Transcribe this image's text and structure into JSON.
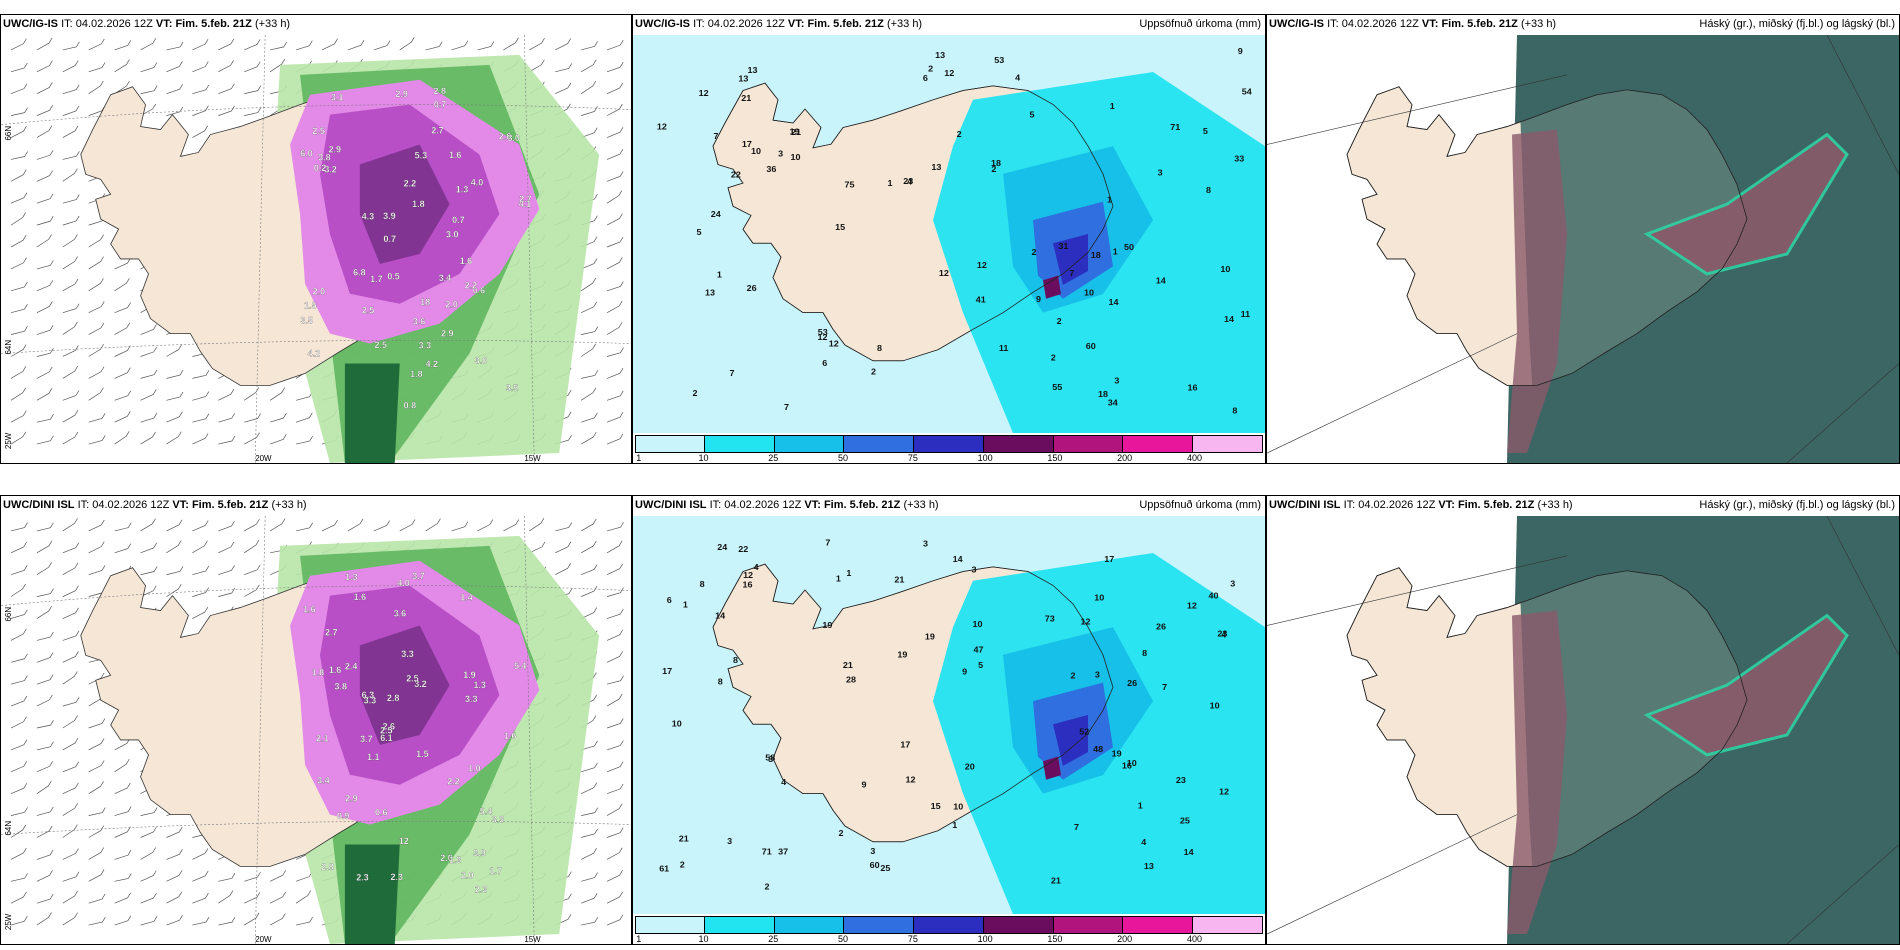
{
  "rows": [
    {
      "panels": [
        {
          "kind": "wind",
          "model": "UWC/IG-IS",
          "it_label": "IT:",
          "it": "04.02.2026 12Z",
          "vt_label": "VT:",
          "vt": "Fim. 5.feb. 21Z",
          "lead": "(+33 h)",
          "right": "",
          "lat_labels": [
            "66N",
            "64N",
            "25W"
          ],
          "lon_labels": [
            "20W",
            "15W"
          ],
          "values": [
            "0.7",
            "1.8",
            "2.5",
            "3.0",
            "2.7",
            "4.2",
            "3.9",
            "2.7",
            "3.5",
            "3.8",
            "3.4",
            "3.6",
            "3.2",
            "2.9",
            "2.6",
            "3.0",
            "2.5",
            "1.8",
            "2.2",
            "1.6",
            "2.0",
            "0.8",
            "0.6",
            "0.7",
            "2.9",
            "4.1",
            "3.5",
            "4.0",
            "2.9",
            "1.6",
            "2.2",
            "2.5",
            "0.5",
            "0.7",
            "4.2",
            "4.3",
            "6.0",
            "5.3",
            "1.3",
            "3.0",
            "6.8",
            "1.5",
            "18",
            "0.2",
            "3.3",
            "3.1",
            "1.7",
            "2.8",
            "2.0"
          ]
        },
        {
          "kind": "precip",
          "model": "UWC/IG-IS",
          "it_label": "IT:",
          "it": "04.02.2026 12Z",
          "vt_label": "VT:",
          "vt": "Fim. 5.feb. 21Z",
          "lead": "(+33 h)",
          "right": "Uppsöfnuð úrkoma (mm)",
          "values": [
            "1",
            "2",
            "2",
            "3",
            "3",
            "2",
            "2",
            "1",
            "1",
            "1",
            "2",
            "4",
            "4",
            "5",
            "7",
            "10",
            "19",
            "5",
            "7",
            "8",
            "12",
            "11",
            "14",
            "9",
            "10",
            "8",
            "12",
            "12",
            "7",
            "6",
            "13",
            "41",
            "55",
            "6",
            "9",
            "54",
            "15",
            "18",
            "18",
            "71",
            "26",
            "53",
            "75",
            "10",
            "16",
            "33",
            "12",
            "14",
            "36",
            "31",
            "50",
            "12",
            "60",
            "10",
            "53",
            "34",
            "24",
            "23",
            "22",
            "21",
            "21",
            "17",
            "13",
            "13",
            "13",
            "13",
            "18",
            "12",
            "11",
            "8",
            "12",
            "7",
            "2",
            "2",
            "1",
            "5",
            "14",
            "3",
            "2"
          ],
          "scale": [
            "1",
            "10",
            "25",
            "50",
            "75",
            "100",
            "150",
            "200",
            "400"
          ]
        },
        {
          "kind": "cloud",
          "model": "UWC/IG-IS",
          "it_label": "IT:",
          "it": "04.02.2026 12Z",
          "vt_label": "VT:",
          "vt": "Fim. 5.feb. 21Z",
          "lead": "(+33 h)",
          "right": "Háský (gr.), miðský (fj.bl.) og lágský (bl.)"
        }
      ]
    },
    {
      "panels": [
        {
          "kind": "wind",
          "model": "UWC/DINI ISL",
          "it_label": "IT:",
          "it": "04.02.2026 12Z",
          "vt_label": "VT:",
          "vt": "Fim. 5.feb. 21Z",
          "lead": "(+33 h)",
          "right": "",
          "lat_labels": [
            "66N",
            "64N",
            "25W"
          ],
          "lon_labels": [
            "20W",
            "15W"
          ],
          "values": [
            "0.9",
            "2.0",
            "1.5",
            "2.1",
            "1.6",
            "1.3",
            "2.3",
            "2.8",
            "2.9",
            "3.2",
            "3.6",
            "1.7",
            "1.4",
            "2.2",
            "3.7",
            "2.6",
            "3.3",
            "2.5",
            "3.9",
            "1.6",
            "2.7",
            "1.1",
            "1.6",
            "2.0",
            "2.3",
            "4.0",
            "1.3",
            "5.4",
            "3.3",
            "6.3",
            "2.3",
            "3.7",
            "3.3",
            "1.8",
            "0.6",
            "1.3",
            "3.4",
            "3.3",
            "2.5",
            "2.4",
            "12",
            "1.6",
            "1.0",
            "3.8",
            "5.4",
            "2.8",
            "1.9",
            "6.1"
          ]
        },
        {
          "kind": "precip",
          "model": "UWC/DINI ISL",
          "it_label": "IT:",
          "it": "04.02.2026 12Z",
          "vt_label": "VT:",
          "vt": "Fim. 5.feb. 21Z",
          "lead": "(+33 h)",
          "right": "Uppsöfnuð úrkoma (mm)",
          "values": [
            "1",
            "1",
            "2",
            "2",
            "3",
            "3",
            "2",
            "3",
            "3",
            "4",
            "3",
            "4",
            "1",
            "1",
            "4",
            "10",
            "9",
            "12",
            "6",
            "13",
            "20",
            "8",
            "8",
            "10",
            "7",
            "12",
            "10",
            "48",
            "37",
            "61",
            "9",
            "17",
            "12",
            "12",
            "17",
            "14",
            "25",
            "10",
            "21",
            "8",
            "60",
            "58",
            "47",
            "28",
            "71",
            "40",
            "52",
            "12",
            "73",
            "23",
            "22",
            "21",
            "16",
            "19",
            "19",
            "26",
            "23",
            "24",
            "21",
            "17",
            "19",
            "25",
            "19",
            "26",
            "14",
            "14",
            "15",
            "21",
            "10",
            "16",
            "5",
            "7",
            "8",
            "7",
            "4",
            "3",
            "10",
            "1",
            "2",
            "3"
          ],
          "scale": [
            "1",
            "10",
            "25",
            "50",
            "75",
            "100",
            "150",
            "200",
            "400"
          ]
        },
        {
          "kind": "cloud",
          "model": "UWC/DINI ISL",
          "it_label": "IT:",
          "it": "04.02.2026 12Z",
          "vt_label": "VT:",
          "vt": "Fim. 5.feb. 21Z",
          "lead": "(+33 h)",
          "right": "Háský (gr.), miðský (fj.bl.) og lágský (bl.)"
        }
      ]
    }
  ],
  "colors": {
    "land": "#f5e6d6",
    "ocean": "#ffffff",
    "wind_light": "#b8e6a8",
    "wind_mid": "#59b35a",
    "wind_dark": "#1f6b3a",
    "snow_light": "#e38ae8",
    "snow_mid": "#b84fc6",
    "snow_dark": "#6a2a7a",
    "precip_1": "#c9f4fb",
    "precip_10": "#22e3f0",
    "precip_25": "#16c0e8",
    "precip_50": "#2f6fe0",
    "precip_75": "#2c2ec0",
    "precip_100": "#6a0d5e",
    "precip_150": "#b2147d",
    "precip_200": "#e8169a",
    "precip_400": "#f7b6f0",
    "cloud_high": "#3c6663",
    "cloud_mid": "#8a5a6a",
    "cloud_low": "#2fd2a4"
  }
}
